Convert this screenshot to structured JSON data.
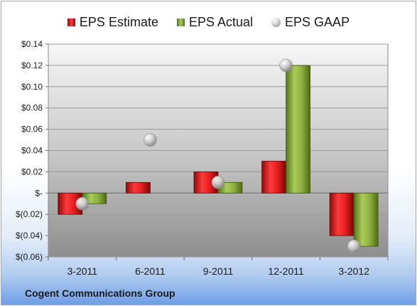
{
  "chart_data": {
    "type": "bar",
    "title": "",
    "xlabel": "",
    "ylabel": "",
    "categories": [
      "3-2011",
      "6-2011",
      "9-2011",
      "12-2011",
      "3-2012"
    ],
    "ylim": [
      -0.06,
      0.14
    ],
    "y_ticks": [
      {
        "value": 0.14,
        "label": "$0.14"
      },
      {
        "value": 0.12,
        "label": "$0.12"
      },
      {
        "value": 0.1,
        "label": "$0.10"
      },
      {
        "value": 0.08,
        "label": "$0.08"
      },
      {
        "value": 0.06,
        "label": "$0.06"
      },
      {
        "value": 0.04,
        "label": "$0.04"
      },
      {
        "value": 0.02,
        "label": "$0.02"
      },
      {
        "value": 0.0,
        "label": "$-"
      },
      {
        "value": -0.02,
        "label": "$(0.02)"
      },
      {
        "value": -0.04,
        "label": "$(0.04)"
      },
      {
        "value": -0.06,
        "label": "$(0.06)"
      }
    ],
    "grid": true,
    "legend_position": "top",
    "series": [
      {
        "name": "EPS Estimate",
        "kind": "bar",
        "color": "#cc1f1f",
        "values": [
          -0.02,
          0.01,
          0.02,
          0.03,
          -0.04
        ]
      },
      {
        "name": "EPS Actual",
        "kind": "bar",
        "color": "#8db040",
        "values": [
          -0.01,
          null,
          0.01,
          0.12,
          -0.05
        ]
      },
      {
        "name": "EPS GAAP",
        "kind": "bubble",
        "color": "#b9b9b9",
        "values": [
          -0.01,
          0.05,
          0.01,
          0.12,
          -0.05
        ]
      }
    ]
  },
  "footer": {
    "title": "Cogent Communications Group"
  }
}
